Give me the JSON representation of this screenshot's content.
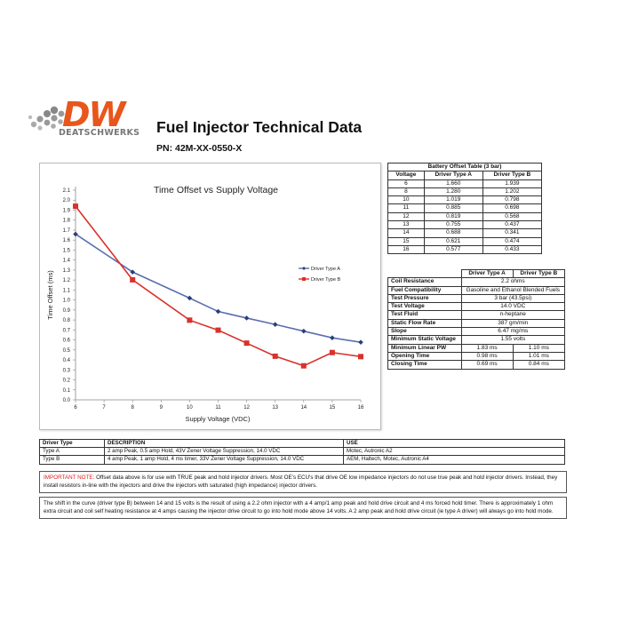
{
  "brand": {
    "logo_text": "DW",
    "logo_subtext": "DEATSCHWERKS",
    "color": "#e8561c"
  },
  "header": {
    "title": "Fuel Injector Technical Data",
    "part_number": "PN: 42M-XX-0550-X"
  },
  "chart_data": {
    "type": "line",
    "title": "Time Offset vs Supply Voltage",
    "xlabel": "Supply Voltage (VDC)",
    "ylabel": "Time Offset (ms)",
    "xlim": [
      6,
      16
    ],
    "ylim": [
      0,
      2.1
    ],
    "x_ticks": [
      6,
      7,
      8,
      9,
      10,
      11,
      12,
      13,
      14,
      15,
      16
    ],
    "y_ticks": [
      0,
      0.1,
      0.2,
      0.3,
      0.4,
      0.5,
      0.6,
      0.7,
      0.8,
      0.9,
      1.0,
      1.1,
      1.2,
      1.3,
      1.4,
      1.5,
      1.6,
      1.7,
      1.8,
      1.9,
      2.0,
      2.1
    ],
    "y_tick_labels": [
      "0.0",
      "0.1",
      "0.2",
      "0.3",
      "0.4",
      "0.5",
      "0.6",
      "0.7",
      "0.8",
      "0.9",
      "1.0",
      "1.1",
      "1.2",
      "1.3",
      "1.4",
      "1.5",
      "1.6",
      "1.7",
      "1.8",
      "1.9",
      "2.0",
      "2.1"
    ],
    "grid": false,
    "legend": "right",
    "x": [
      6,
      8,
      10,
      11,
      12,
      13,
      14,
      15,
      16
    ],
    "series": [
      {
        "name": "Driver Type A",
        "color": "#5b6fae",
        "marker": "diamond",
        "values": [
          1.66,
          1.28,
          1.019,
          0.885,
          0.819,
          0.755,
          0.688,
          0.621,
          0.577
        ]
      },
      {
        "name": "Driver Type B",
        "color": "#d9312b",
        "marker": "square",
        "values": [
          1.939,
          1.202,
          0.798,
          0.698,
          0.568,
          0.437,
          0.341,
          0.474,
          0.433
        ]
      }
    ]
  },
  "battery_table": {
    "title": "Battery Offset Table (3 bar)",
    "headers": [
      "Voltage",
      "Driver Type A",
      "Driver Type B"
    ],
    "rows": [
      [
        "6",
        "1.660",
        "1.939"
      ],
      [
        "8",
        "1.280",
        "1.202"
      ],
      [
        "10",
        "1.019",
        "0.798"
      ],
      [
        "11",
        "0.885",
        "0.698"
      ],
      [
        "12",
        "0.819",
        "0.568"
      ],
      [
        "13",
        "0.755",
        "0.437"
      ],
      [
        "14",
        "0.688",
        "0.341"
      ],
      [
        "15",
        "0.621",
        "0.474"
      ],
      [
        "16",
        "0.577",
        "0.433"
      ]
    ]
  },
  "specs_table": {
    "headers": [
      "",
      "Driver Type A",
      "Driver Type B"
    ],
    "rows": [
      {
        "label": "Coil Resistance",
        "value": "2.2 ohms"
      },
      {
        "label": "Fuel Compatibility",
        "value": "Gasoline and Ethanol Blended Fuels"
      },
      {
        "label": "Test Pressure",
        "value": "3 bar (43.5psi)"
      },
      {
        "label": "Test Voltage",
        "value": "14.0 VDC"
      },
      {
        "label": "Test Fluid",
        "value": "n-heptane"
      },
      {
        "label": "Static Flow Rate",
        "value": "387 gm/min"
      },
      {
        "label": "Slope",
        "value": "6.47 mg/ms"
      },
      {
        "label": "Minimum Static Voltage",
        "value": "1.55 volts"
      },
      {
        "label": "Minimum Linear PW",
        "a": "1.83 ms",
        "b": "1.10 ms"
      },
      {
        "label": "Opening Time",
        "a": "0.98 ms",
        "b": "1.01 ms"
      },
      {
        "label": "Closing Time",
        "a": "0.69 ms",
        "b": "0.84 ms"
      }
    ]
  },
  "driver_table": {
    "headers": [
      "Driver Type",
      "DESCRIPTION",
      "USE"
    ],
    "rows": [
      [
        "Type A",
        "2 amp Peak, 0.5 amp Hold, 43V Zener Voltage Suppression, 14.0 VDC",
        "Motec, Autronic A2"
      ],
      [
        "Type B",
        "4 amp Peak, 1 amp Hold, 4 ms timer, 33V Zener Voltage Suppression, 14.0 VDC",
        "AEM, Haltech, Motec, Autronic A4"
      ]
    ]
  },
  "notes": {
    "important_label": "IMPORTANT NOTE:",
    "important_text": " Offset data above is for use with TRUE peak and hold injector drivers.  Most OE's ECU's that drive OE low impedance injectors do not use true peak and hold injector drivers.  Instead, they install resistors in-line with the injectors and drive the injectors with saturated (high impedance) injector drivers.",
    "shift_text": "The shift in the curve (driver type B) between 14 and 15 volts is the result of using a 2.2 ohm injector with a 4 amp/1 amp peak and hold drive circuit and 4 ms forced hold timer. There is approximately 1 ohm extra circuit and coil self heating resistance at 4 amps causing the injector drive circuit to go into hold mode above 14 volts.  A 2 amp peak and hold drive circuit (ie type A driver) will always go into hold mode."
  }
}
